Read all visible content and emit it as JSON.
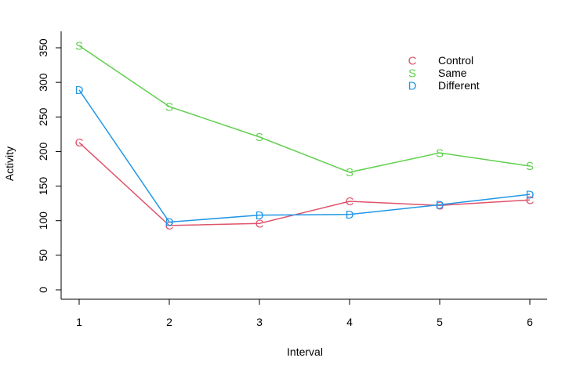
{
  "chart_data": {
    "type": "line",
    "xlabel": "Interval",
    "ylabel": "Activity",
    "x": [
      1,
      2,
      3,
      4,
      5,
      6
    ],
    "xlim": [
      1,
      6
    ],
    "ylim": [
      0,
      350
    ],
    "xticks": [
      "1",
      "2",
      "3",
      "4",
      "5",
      "6"
    ],
    "yticks": [
      "0",
      "50",
      "100",
      "150",
      "200",
      "250",
      "300",
      "350"
    ],
    "grid": false,
    "legend_position": "top-right",
    "series": [
      {
        "name": "Control",
        "symbol": "C",
        "color": "#df536b",
        "values": [
          213,
          93,
          96,
          128,
          122,
          130
        ]
      },
      {
        "name": "Same",
        "symbol": "S",
        "color": "#61d04f",
        "values": [
          353,
          265,
          221,
          170,
          198,
          179
        ]
      },
      {
        "name": "Different",
        "symbol": "D",
        "color": "#2297e6",
        "values": [
          289,
          98,
          108,
          109,
          123,
          138
        ]
      }
    ]
  }
}
